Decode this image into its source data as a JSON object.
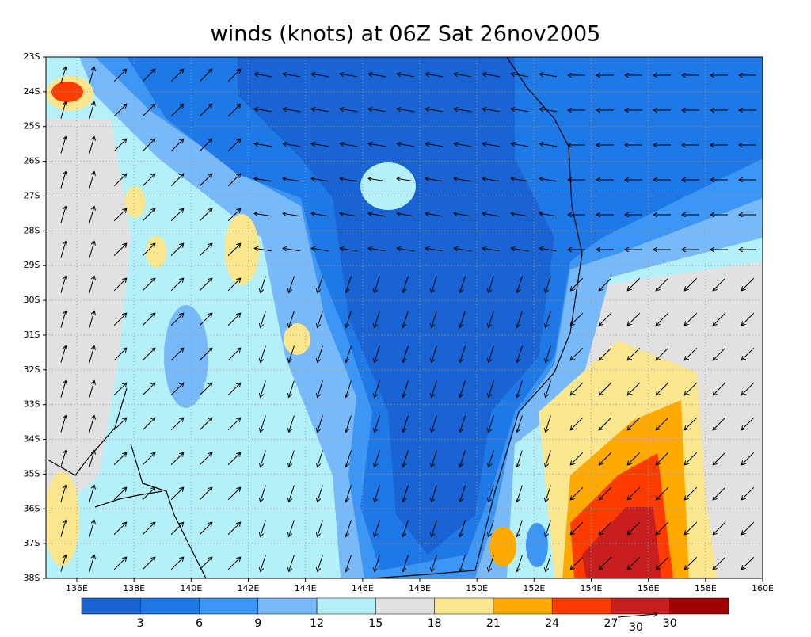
{
  "header": {
    "title": "winds (knots) at 06Z Sat 26nov2005"
  },
  "map": {
    "lat_labels": [
      "23S",
      "24S",
      "25S",
      "26S",
      "27S",
      "28S",
      "29S",
      "30S",
      "31S",
      "32S",
      "33S",
      "34S",
      "35S",
      "36S",
      "37S",
      "38S"
    ],
    "lon_labels": [
      "136E",
      "138E",
      "140E",
      "142E",
      "144E",
      "146E",
      "148E",
      "150E",
      "152E",
      "154E",
      "156E",
      "158E",
      "160E"
    ],
    "grid": true
  },
  "colorbar": {
    "colors": [
      "#1964d2",
      "#1e78e6",
      "#3c96f5",
      "#78b9fa",
      "#b4f0fa",
      "#e1e1e1",
      "#fae68c",
      "#ffaa00",
      "#ff3c00",
      "#c81e1e",
      "#a00000"
    ],
    "labels": [
      3,
      6,
      9,
      12,
      15,
      18,
      21,
      24,
      27,
      30
    ]
  },
  "vector_scale": {
    "label": 30
  }
}
